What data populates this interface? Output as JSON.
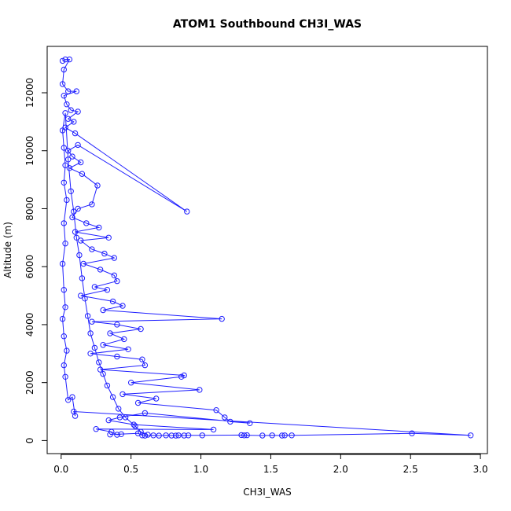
{
  "chart_data": {
    "type": "scatter",
    "title": "ATOM1 Southbound CH3I_WAS",
    "xlabel": "CH3I_WAS",
    "ylabel": "Altitude (m)",
    "xlim": [
      -0.1,
      3.05
    ],
    "ylim": [
      -450,
      13600
    ],
    "xticks": [
      0.0,
      0.5,
      1.0,
      1.5,
      2.0,
      2.5,
      3.0
    ],
    "xtick_labels": [
      "0.0",
      "0.5",
      "1.0",
      "1.5",
      "2.0",
      "2.5",
      "3.0"
    ],
    "yticks": [
      0,
      2000,
      4000,
      6000,
      8000,
      10000,
      12000
    ],
    "ytick_labels": [
      "0",
      "2000",
      "4000",
      "6000",
      "8000",
      "10000",
      "12000"
    ],
    "grid": false,
    "legend": "none",
    "markers": "open-circle",
    "connected": true,
    "color": "#1f1fff",
    "series": [
      {
        "values": [
          [
            0.01,
            13100
          ],
          [
            0.03,
            13150
          ],
          [
            0.06,
            13150
          ],
          [
            0.02,
            12800
          ],
          [
            0.01,
            12300
          ],
          [
            0.05,
            12050
          ],
          [
            0.11,
            12050
          ],
          [
            0.02,
            11900
          ],
          [
            0.04,
            11600
          ],
          [
            0.07,
            11400
          ],
          [
            0.12,
            11350
          ],
          [
            0.05,
            11100
          ],
          [
            0.09,
            11000
          ],
          [
            0.03,
            10800
          ],
          [
            0.1,
            10600
          ],
          [
            0.9,
            7900
          ],
          [
            0.12,
            10200
          ],
          [
            0.05,
            10000
          ],
          [
            0.08,
            9800
          ],
          [
            0.14,
            9600
          ],
          [
            0.06,
            9400
          ],
          [
            0.15,
            9200
          ],
          [
            0.26,
            8800
          ],
          [
            0.22,
            8150
          ],
          [
            0.12,
            8000
          ],
          [
            0.08,
            7700
          ],
          [
            0.18,
            7500
          ],
          [
            0.27,
            7350
          ],
          [
            0.1,
            7200
          ],
          [
            0.34,
            7000
          ],
          [
            0.14,
            6900
          ],
          [
            0.22,
            6600
          ],
          [
            0.31,
            6450
          ],
          [
            0.38,
            6300
          ],
          [
            0.16,
            6100
          ],
          [
            0.28,
            5900
          ],
          [
            0.38,
            5700
          ],
          [
            0.4,
            5500
          ],
          [
            0.24,
            5300
          ],
          [
            0.33,
            5200
          ],
          [
            0.14,
            5000
          ],
          [
            0.37,
            4800
          ],
          [
            0.44,
            4650
          ],
          [
            0.3,
            4500
          ],
          [
            1.15,
            4200
          ],
          [
            0.22,
            4100
          ],
          [
            0.4,
            4000
          ],
          [
            0.57,
            3850
          ],
          [
            0.35,
            3700
          ],
          [
            0.45,
            3500
          ],
          [
            0.3,
            3300
          ],
          [
            0.48,
            3150
          ],
          [
            0.21,
            3000
          ],
          [
            0.4,
            2900
          ],
          [
            0.58,
            2800
          ],
          [
            0.6,
            2600
          ],
          [
            0.28,
            2450
          ],
          [
            0.88,
            2250
          ],
          [
            0.86,
            2200
          ],
          [
            0.5,
            2000
          ],
          [
            0.99,
            1750
          ],
          [
            0.44,
            1600
          ],
          [
            0.68,
            1450
          ],
          [
            0.55,
            1300
          ],
          [
            1.11,
            1050
          ],
          [
            1.17,
            800
          ],
          [
            1.21,
            650
          ],
          [
            1.35,
            600
          ],
          [
            0.6,
            950
          ],
          [
            0.42,
            800
          ],
          [
            0.34,
            700
          ],
          [
            0.52,
            550
          ],
          [
            1.09,
            380
          ],
          [
            0.25,
            400
          ],
          [
            0.36,
            300
          ],
          [
            0.4,
            200
          ],
          [
            0.43,
            220
          ],
          [
            0.35,
            210
          ],
          [
            0.55,
            250
          ],
          [
            0.58,
            180
          ],
          [
            0.6,
            170
          ],
          [
            0.66,
            180
          ],
          [
            0.7,
            170
          ],
          [
            0.75,
            180
          ],
          [
            0.79,
            175
          ],
          [
            0.82,
            170
          ],
          [
            0.84,
            180
          ],
          [
            0.88,
            175
          ],
          [
            0.91,
            180
          ],
          [
            1.01,
            180
          ],
          [
            1.29,
            190
          ],
          [
            1.31,
            180
          ],
          [
            1.33,
            185
          ],
          [
            1.44,
            175
          ],
          [
            1.51,
            180
          ],
          [
            1.58,
            175
          ],
          [
            1.6,
            180
          ],
          [
            1.65,
            180
          ],
          [
            2.51,
            250
          ],
          [
            2.93,
            180
          ],
          [
            0.09,
            1000
          ],
          [
            0.1,
            850
          ],
          [
            0.08,
            1500
          ],
          [
            0.05,
            1400
          ],
          [
            0.03,
            2200
          ],
          [
            0.02,
            2600
          ],
          [
            0.04,
            3100
          ],
          [
            0.02,
            3600
          ],
          [
            0.01,
            4200
          ],
          [
            0.03,
            4600
          ],
          [
            0.02,
            5200
          ],
          [
            0.01,
            6100
          ],
          [
            0.03,
            6800
          ],
          [
            0.02,
            7500
          ],
          [
            0.04,
            8300
          ],
          [
            0.02,
            8900
          ],
          [
            0.03,
            9500
          ],
          [
            0.02,
            10100
          ],
          [
            0.01,
            10700
          ],
          [
            0.03,
            11300
          ],
          [
            0.05,
            9700
          ],
          [
            0.07,
            8600
          ],
          [
            0.09,
            7900
          ],
          [
            0.11,
            7000
          ],
          [
            0.13,
            6400
          ],
          [
            0.15,
            5600
          ],
          [
            0.17,
            4900
          ],
          [
            0.19,
            4300
          ],
          [
            0.21,
            3700
          ],
          [
            0.24,
            3200
          ],
          [
            0.27,
            2700
          ],
          [
            0.3,
            2300
          ],
          [
            0.33,
            1900
          ],
          [
            0.37,
            1500
          ],
          [
            0.41,
            1100
          ],
          [
            0.46,
            800
          ],
          [
            0.53,
            500
          ],
          [
            0.57,
            300
          ],
          [
            0.62,
            200
          ]
        ]
      }
    ]
  }
}
